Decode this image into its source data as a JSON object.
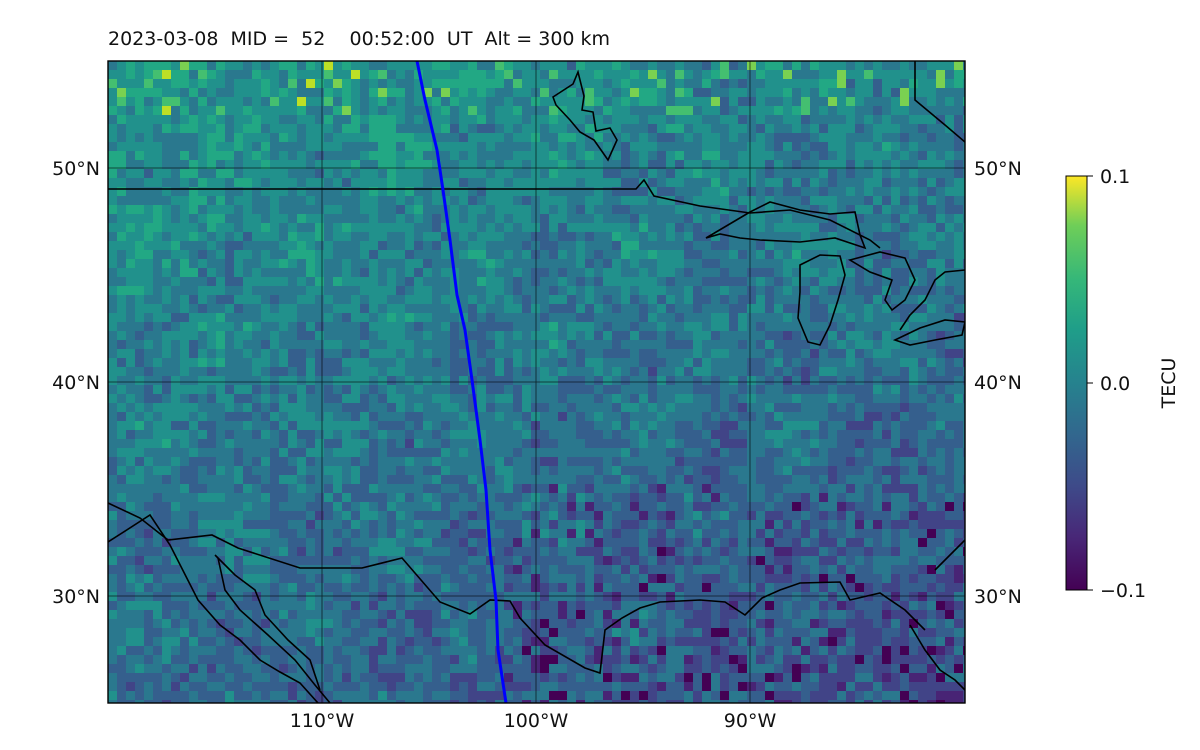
{
  "title": "2023-03-08  MID =  52    00:52:00  UT  Alt = 300 km",
  "map": {
    "projection": "plate-carree",
    "lon_range": [
      -120,
      -80
    ],
    "lat_range": [
      25,
      55
    ],
    "gridlines": true,
    "lat_labels": [
      "50°N",
      "40°N",
      "30°N"
    ],
    "lon_labels": [
      "110°W",
      "100°W",
      "90°W"
    ],
    "features": [
      "coastlines",
      "country borders",
      "Great Lakes",
      "satellite ground track (blue)"
    ]
  },
  "colorbar": {
    "label": "TECU",
    "colormap": "viridis",
    "ticks": [
      "0.1",
      "0.0",
      "−0.1"
    ],
    "range": [
      -0.1,
      0.1
    ]
  },
  "colors": {
    "track": "#0000ff",
    "coast": "#000000"
  }
}
